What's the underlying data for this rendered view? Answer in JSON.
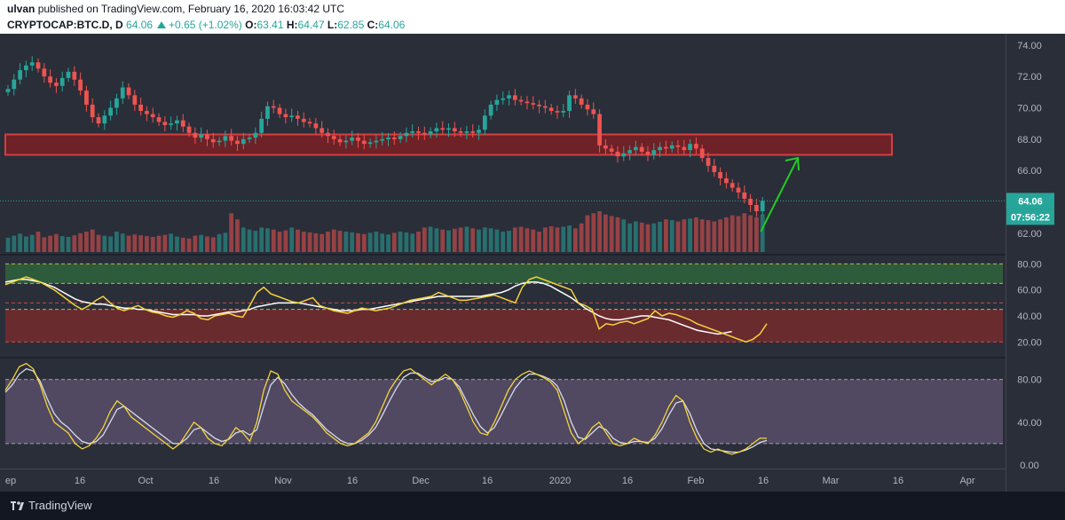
{
  "header": {
    "user": "ulvan",
    "published_text": "published on TradingView.com, February 16, 2020 16:03:42 UTC",
    "symbol": "CRYPTOCAP:BTC.D, D",
    "last": "64.06",
    "change": "+0.65 (+1.02%)",
    "o_label": "O:",
    "o": "63.41",
    "h_label": "H:",
    "h": "64.47",
    "l_label": "L:",
    "l": "62.85",
    "c_label": "C:",
    "c": "64.06"
  },
  "footer": {
    "brand": "TradingView"
  },
  "colors": {
    "bg": "#2a2e39",
    "up": "#26a69a",
    "down": "#ef5350",
    "zone_fill": "#7a1f24",
    "zone_border": "#ef4444",
    "rsi_line": "#f5d33b",
    "rsi_ma": "#ffffff",
    "stoch_k": "#f5d33b",
    "stoch_d": "#d6dbe8",
    "arrow": "#22cc22",
    "price_tag": "#26a69a"
  },
  "price_tag": "64.06",
  "countdown_tag": "07:56:22",
  "x_labels": [
    "ep",
    "16",
    "Oct",
    "16",
    "Nov",
    "16",
    "Dec",
    "16",
    "2020",
    "16",
    "Feb",
    "16",
    "Mar",
    "16",
    "Apr"
  ],
  "chart_data": [
    {
      "type": "candlestick",
      "title": "CRYPTOCAP:BTC.D, D",
      "ylim": [
        60.8,
        74.5
      ],
      "y_ticks": [
        "74.00",
        "72.00",
        "70.00",
        "68.00",
        "66.00",
        "64.00",
        "62.00"
      ],
      "resistance_zone": [
        67.0,
        68.3
      ],
      "last_price": 64.06,
      "series_close": [
        71.2,
        71.8,
        72.4,
        72.7,
        72.9,
        72.5,
        72.0,
        71.6,
        71.4,
        71.9,
        72.3,
        71.8,
        71.1,
        70.2,
        69.4,
        69.0,
        69.5,
        70.0,
        70.6,
        71.3,
        70.8,
        70.2,
        69.8,
        69.6,
        69.4,
        69.1,
        68.9,
        69.0,
        69.2,
        68.8,
        68.4,
        68.1,
        68.3,
        68.0,
        67.8,
        67.9,
        68.2,
        67.9,
        67.7,
        68.0,
        68.1,
        68.4,
        69.3,
        70.1,
        70.0,
        69.6,
        69.4,
        69.5,
        69.3,
        69.1,
        69.0,
        68.7,
        68.4,
        68.2,
        68.0,
        67.8,
        67.9,
        68.1,
        67.9,
        67.7,
        67.8,
        67.9,
        68.0,
        68.1,
        68.0,
        68.2,
        68.4,
        68.5,
        68.4,
        68.3,
        68.5,
        68.7,
        68.6,
        68.7,
        68.5,
        68.4,
        68.5,
        68.4,
        68.6,
        69.5,
        70.2,
        70.5,
        70.6,
        70.8,
        70.5,
        70.4,
        70.3,
        70.2,
        70.1,
        70.0,
        69.8,
        69.7,
        69.8,
        70.8,
        70.6,
        70.2,
        69.9,
        69.6,
        67.6,
        67.4,
        67.2,
        66.9,
        67.1,
        67.3,
        67.5,
        67.2,
        67.0,
        67.3,
        67.5,
        67.4,
        67.6,
        67.5,
        67.3,
        67.7,
        67.4,
        66.8,
        66.3,
        65.9,
        65.5,
        65.2,
        64.9,
        64.6,
        64.2,
        63.8,
        63.4,
        64.06
      ],
      "volume_relative": [
        0.35,
        0.4,
        0.45,
        0.38,
        0.42,
        0.5,
        0.36,
        0.4,
        0.44,
        0.39,
        0.37,
        0.41,
        0.46,
        0.5,
        0.55,
        0.42,
        0.4,
        0.38,
        0.5,
        0.45,
        0.4,
        0.43,
        0.41,
        0.39,
        0.37,
        0.4,
        0.42,
        0.45,
        0.38,
        0.35,
        0.33,
        0.4,
        0.42,
        0.38,
        0.36,
        0.44,
        0.47,
        0.95,
        0.8,
        0.6,
        0.55,
        0.52,
        0.6,
        0.58,
        0.55,
        0.5,
        0.53,
        0.6,
        0.55,
        0.5,
        0.48,
        0.46,
        0.44,
        0.5,
        0.55,
        0.52,
        0.5,
        0.48,
        0.46,
        0.44,
        0.47,
        0.5,
        0.45,
        0.43,
        0.47,
        0.5,
        0.48,
        0.45,
        0.5,
        0.6,
        0.62,
        0.58,
        0.55,
        0.53,
        0.57,
        0.6,
        0.62,
        0.58,
        0.55,
        0.6,
        0.58,
        0.55,
        0.5,
        0.52,
        0.6,
        0.62,
        0.58,
        0.55,
        0.5,
        0.6,
        0.63,
        0.6,
        0.62,
        0.65,
        0.58,
        0.7,
        0.9,
        0.95,
        1.0,
        0.92,
        0.88,
        0.85,
        0.8,
        0.7,
        0.75,
        0.72,
        0.68,
        0.7,
        0.74,
        0.8,
        0.78,
        0.75,
        0.8,
        0.82,
        0.85,
        0.8,
        0.78,
        0.75,
        0.8,
        0.85,
        0.9,
        0.88,
        0.95,
        0.9,
        0.85,
        0.92
      ]
    },
    {
      "type": "line",
      "title": "RSI",
      "ylim": [
        10,
        85
      ],
      "y_ticks": [
        "80.00",
        "60.00",
        "40.00",
        "20.00"
      ],
      "bands": {
        "upper": [
          65,
          80
        ],
        "lower": [
          20,
          45
        ]
      },
      "series": [
        {
          "values": [
            64,
            66,
            68,
            70,
            68,
            66,
            63,
            60,
            56,
            52,
            48,
            45,
            48,
            52,
            55,
            50,
            46,
            44,
            46,
            48,
            45,
            43,
            42,
            40,
            39,
            41,
            44,
            42,
            38,
            37,
            40,
            41,
            42,
            40,
            39,
            48,
            58,
            62,
            57,
            55,
            53,
            51,
            50,
            52,
            54,
            48,
            46,
            44,
            43,
            42,
            44,
            46,
            45,
            44,
            45,
            46,
            48,
            50,
            52,
            53,
            54,
            55,
            58,
            56,
            54,
            52,
            52,
            53,
            54,
            55,
            56,
            54,
            52,
            50,
            62,
            68,
            70,
            68,
            66,
            64,
            62,
            60,
            50,
            48,
            45,
            30,
            34,
            33,
            35,
            36,
            34,
            36,
            38,
            44,
            40,
            42,
            41,
            39,
            37,
            34,
            32,
            30,
            28,
            26,
            24,
            22,
            20,
            22,
            26,
            34
          ]
        },
        {
          "values": [
            66,
            67,
            68,
            68,
            67,
            66,
            64,
            62,
            59,
            56,
            53,
            51,
            50,
            49,
            49,
            48,
            47,
            46,
            46,
            45,
            45,
            44,
            43,
            42,
            41,
            41,
            41,
            41,
            40,
            40,
            41,
            42,
            43,
            43,
            44,
            45,
            47,
            48,
            49,
            50,
            50,
            50,
            50,
            49,
            48,
            47,
            46,
            45,
            44,
            44,
            44,
            45,
            45,
            46,
            47,
            48,
            49,
            50,
            51,
            52,
            53,
            54,
            55,
            55,
            55,
            55,
            55,
            55,
            55,
            56,
            57,
            58,
            60,
            63,
            65,
            66,
            66,
            65,
            63,
            60,
            57,
            54,
            50,
            46,
            43,
            40,
            38,
            37,
            37,
            38,
            39,
            40,
            40,
            39,
            38,
            37,
            35,
            33,
            31,
            29,
            28,
            27,
            26,
            27,
            28
          ]
        }
      ]
    },
    {
      "type": "line",
      "title": "Stochastic RSI",
      "ylim": [
        -5,
        98
      ],
      "y_ticks": [
        "80.00",
        "40.00",
        "0.00"
      ],
      "bands": {
        "upper": 80,
        "lower": 20
      },
      "series": [
        {
          "values": [
            70,
            80,
            92,
            95,
            90,
            75,
            55,
            40,
            35,
            30,
            20,
            15,
            18,
            25,
            35,
            50,
            60,
            55,
            45,
            40,
            35,
            30,
            25,
            20,
            15,
            20,
            30,
            40,
            35,
            25,
            20,
            18,
            25,
            35,
            30,
            22,
            40,
            70,
            88,
            85,
            70,
            60,
            55,
            50,
            45,
            38,
            30,
            25,
            20,
            18,
            20,
            25,
            30,
            40,
            55,
            70,
            80,
            88,
            90,
            85,
            80,
            75,
            80,
            85,
            80,
            70,
            55,
            40,
            30,
            28,
            40,
            55,
            70,
            80,
            85,
            88,
            85,
            82,
            78,
            70,
            50,
            30,
            20,
            25,
            35,
            40,
            30,
            20,
            18,
            20,
            25,
            22,
            20,
            28,
            40,
            55,
            65,
            60,
            40,
            25,
            15,
            12,
            15,
            12,
            10,
            12,
            15,
            20,
            25,
            25
          ]
        },
        {
          "values": [
            68,
            75,
            85,
            90,
            88,
            78,
            62,
            48,
            40,
            35,
            28,
            22,
            20,
            22,
            28,
            40,
            52,
            55,
            50,
            45,
            40,
            35,
            30,
            25,
            20,
            20,
            25,
            33,
            35,
            30,
            25,
            22,
            24,
            30,
            32,
            28,
            33,
            55,
            75,
            82,
            76,
            66,
            58,
            52,
            47,
            40,
            33,
            28,
            23,
            20,
            20,
            23,
            28,
            35,
            47,
            60,
            72,
            82,
            86,
            86,
            82,
            78,
            79,
            82,
            80,
            73,
            60,
            47,
            36,
            30,
            35,
            47,
            60,
            72,
            80,
            85,
            85,
            83,
            80,
            74,
            60,
            40,
            26,
            24,
            30,
            36,
            33,
            25,
            21,
            20,
            22,
            22,
            21,
            25,
            34,
            47,
            58,
            60,
            48,
            32,
            20,
            15,
            14,
            13,
            12,
            12,
            14,
            17,
            21,
            23
          ]
        }
      ]
    }
  ]
}
